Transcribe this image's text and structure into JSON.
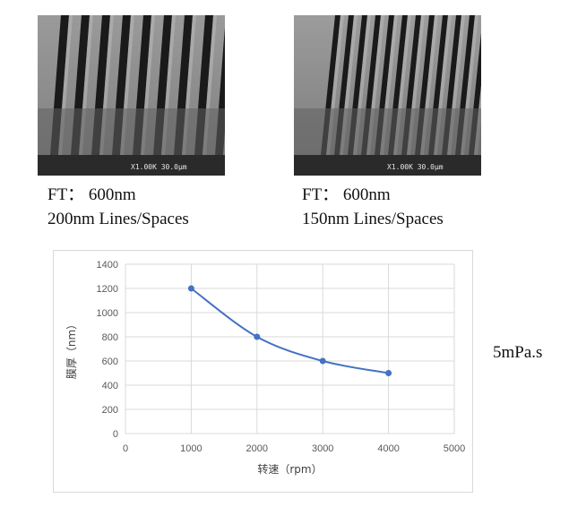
{
  "images": [
    {
      "name": "sem-image-200nm",
      "scale_label": "X1.00K 30.0µm",
      "caption_line1": "FT： 600nm",
      "caption_line2": "200nm Lines/Spaces"
    },
    {
      "name": "sem-image-150nm",
      "scale_label": "X1.00K 30.0µm",
      "caption_line1": "FT： 600nm",
      "caption_line2": "150nm Lines/Spaces"
    }
  ],
  "side_note": "5mPa.s",
  "colors": {
    "series": "#4472c4",
    "grid": "#d9d9d9",
    "sem_trench": "#1a1a1a",
    "sem_line": "#b9b9b9"
  },
  "chart_data": {
    "type": "line",
    "title": "",
    "xlabel": "转速（rpm）",
    "ylabel": "膜厚（nm）",
    "xlim": [
      0,
      5000
    ],
    "ylim": [
      0,
      1400
    ],
    "xticks": [
      0,
      1000,
      2000,
      3000,
      4000,
      5000
    ],
    "yticks": [
      0,
      200,
      400,
      600,
      800,
      1000,
      1200,
      1400
    ],
    "grid": true,
    "series": [
      {
        "name": "膜厚",
        "x": [
          1000,
          2000,
          3000,
          4000
        ],
        "y": [
          1200,
          800,
          600,
          500
        ]
      }
    ]
  }
}
